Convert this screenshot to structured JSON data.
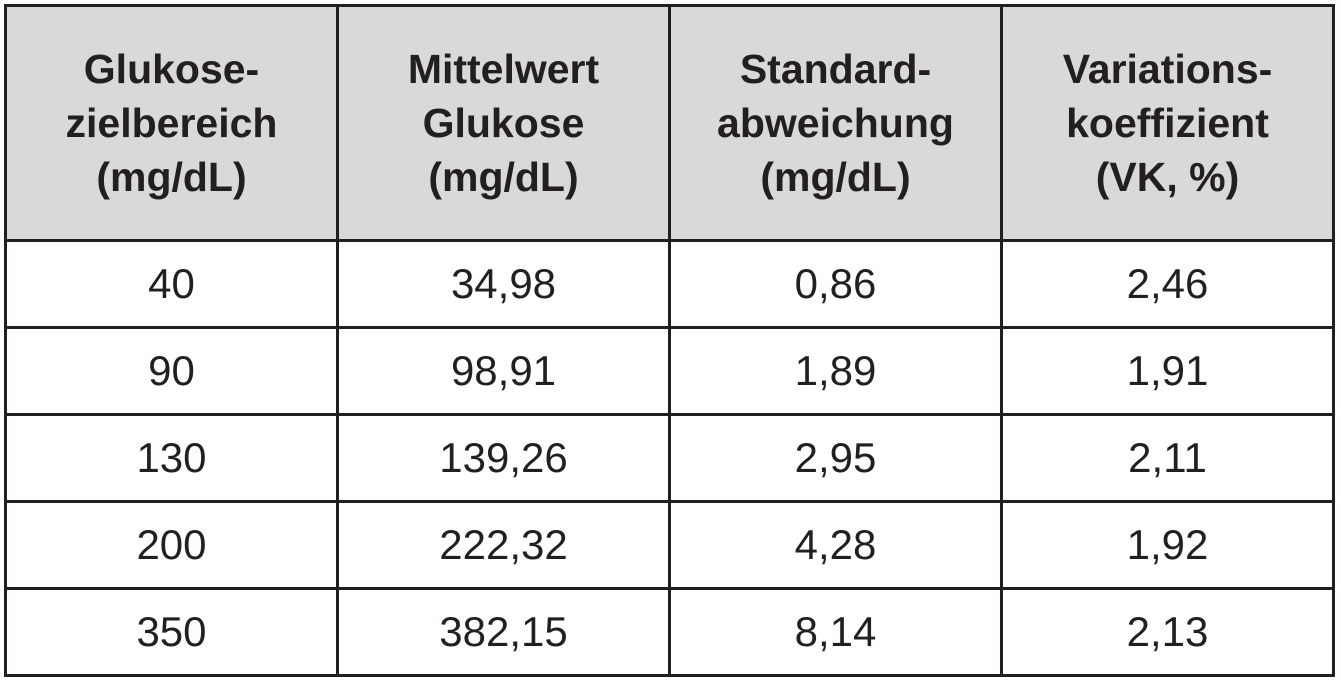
{
  "table": {
    "header": [
      "Glukose-\nzielbereich\n(mg/dL)",
      "Mittelwert\nGlukose\n(mg/dL)",
      "Standard-\nabweichung\n(mg/dL)",
      "Variations-\nkoeffizient\n(VK, %)"
    ],
    "rows": [
      [
        "40",
        "34,98",
        "0,86",
        "2,46"
      ],
      [
        "90",
        "98,91",
        "1,89",
        "1,91"
      ],
      [
        "130",
        "139,26",
        "2,95",
        "2,11"
      ],
      [
        "200",
        "222,32",
        "4,28",
        "1,92"
      ],
      [
        "350",
        "382,15",
        "8,14",
        "2,13"
      ]
    ]
  }
}
